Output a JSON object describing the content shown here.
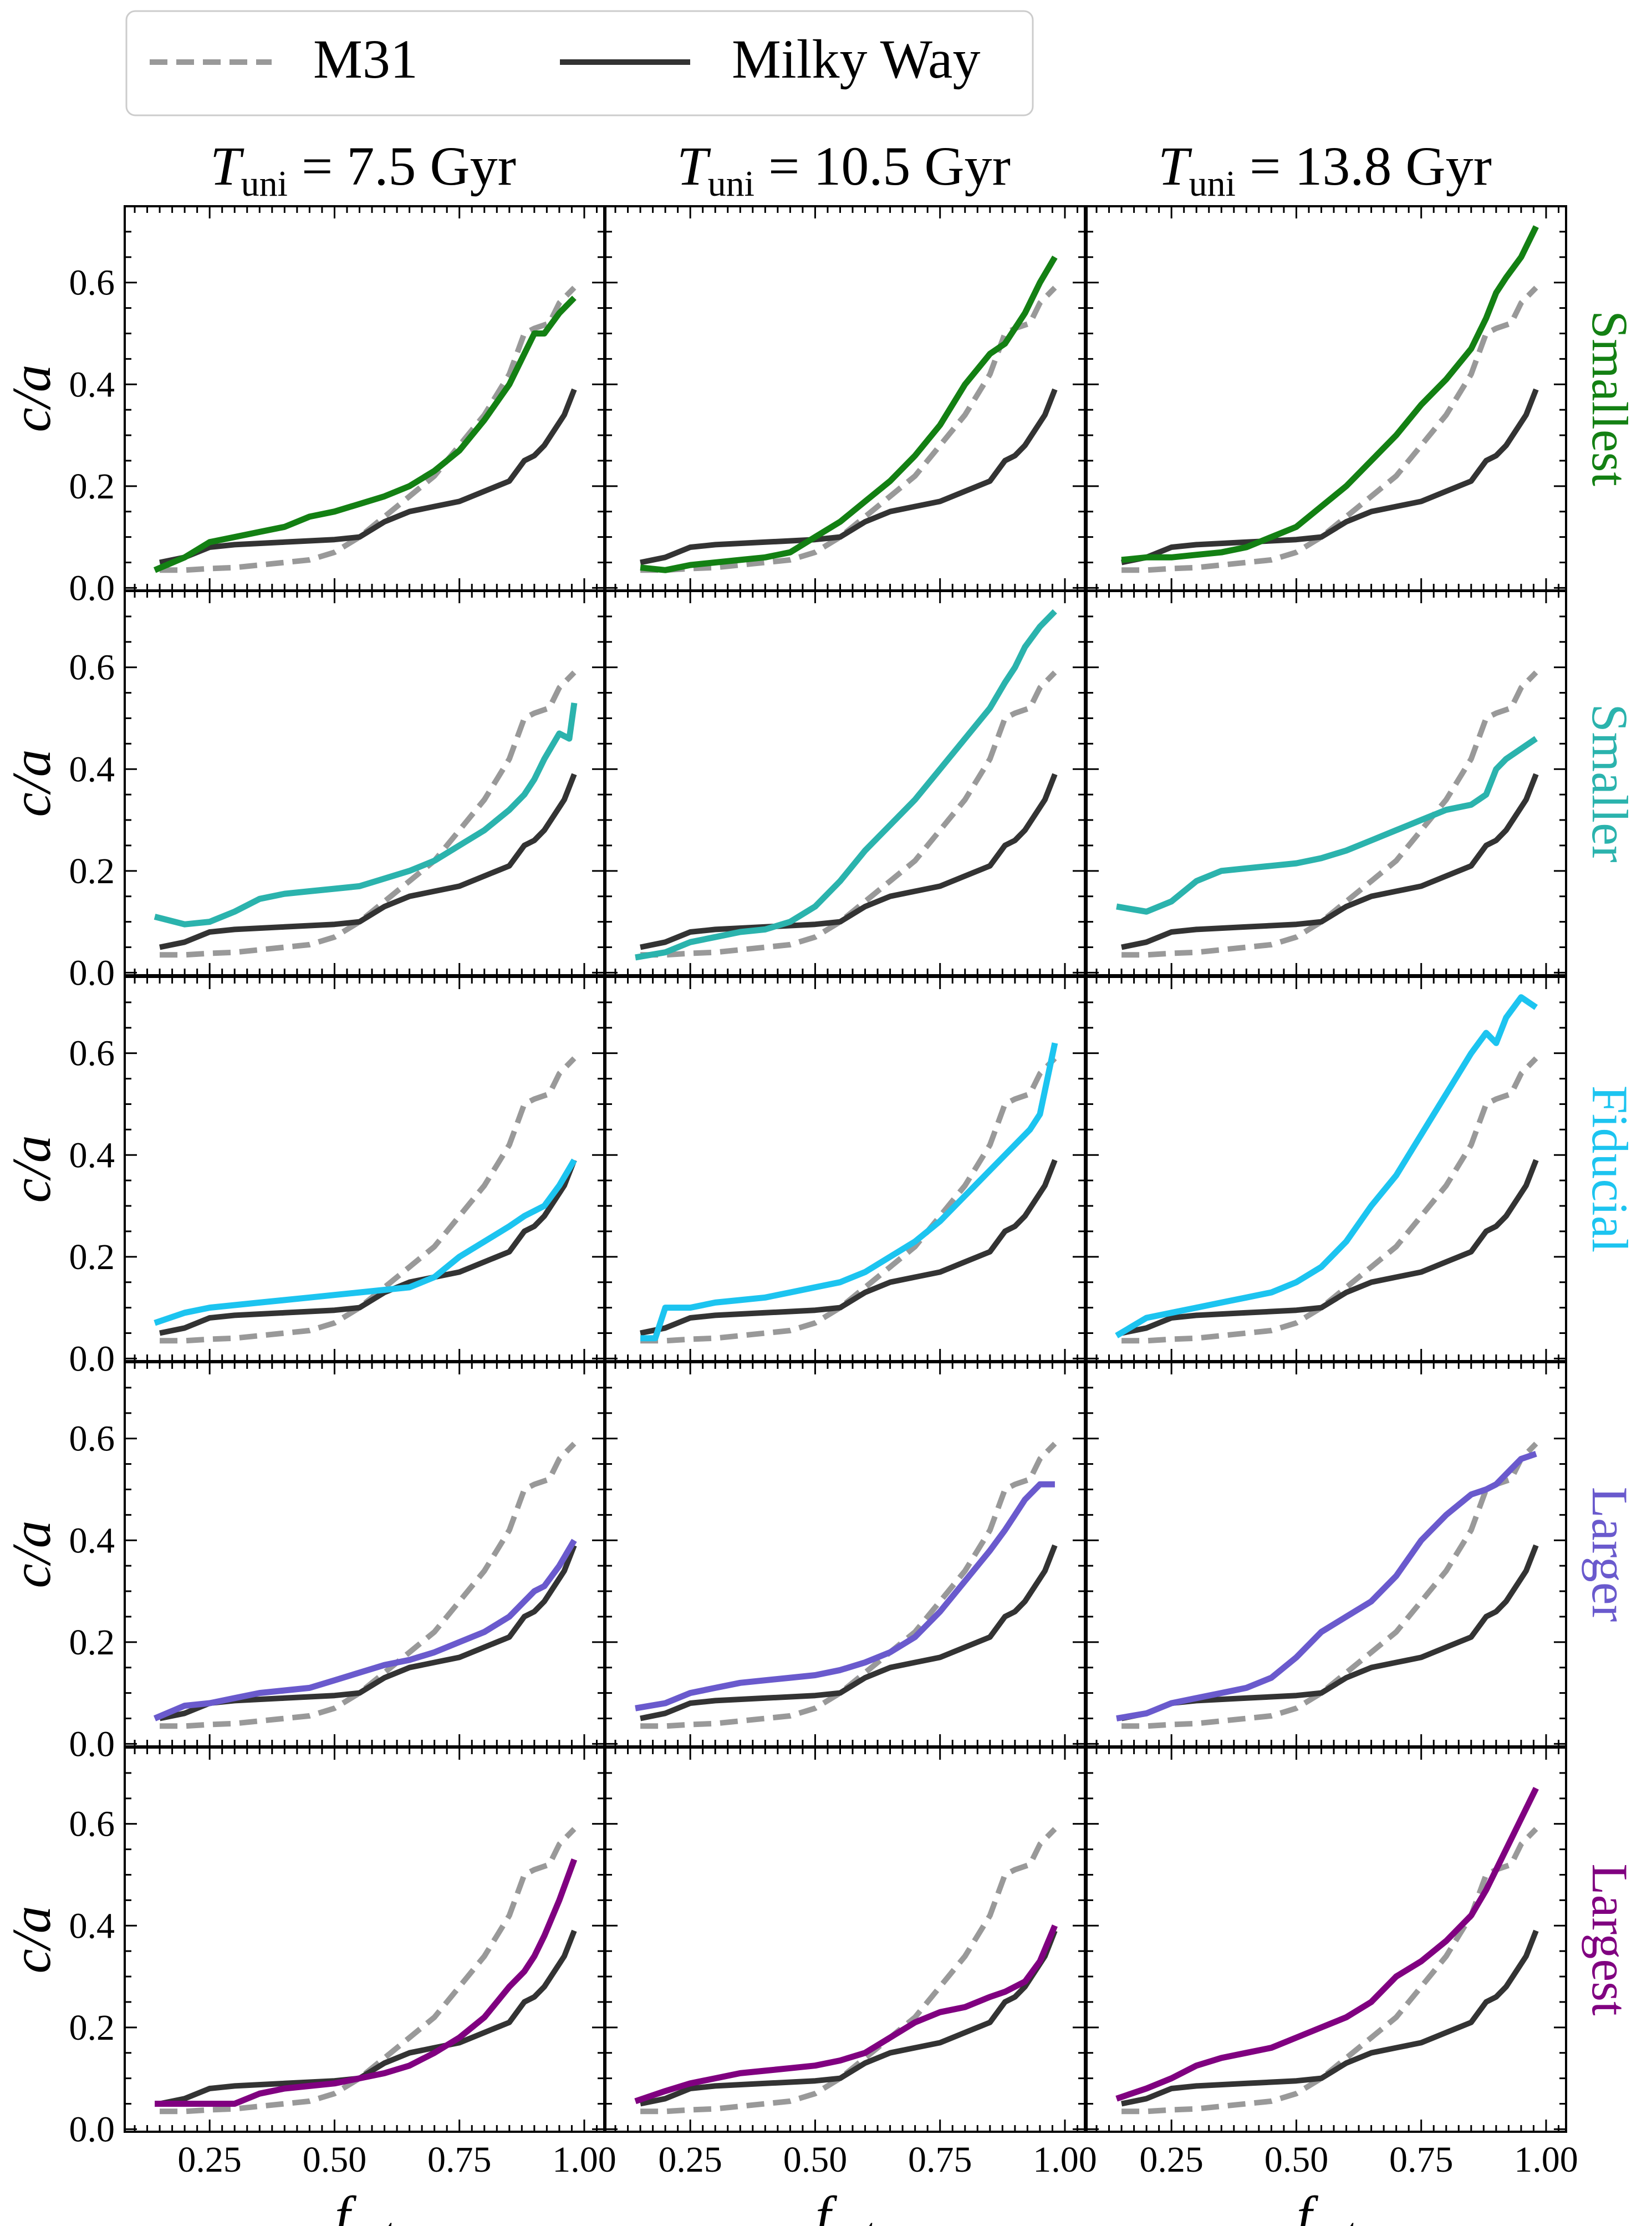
{
  "legend": {
    "entries": [
      {
        "name": "M31",
        "style": "dashed",
        "color": "#999999"
      },
      {
        "name": "Milky Way",
        "style": "solid",
        "color": "#333333"
      }
    ]
  },
  "colors": {
    "m31": "#999999",
    "mw": "#333333",
    "rows": [
      "#138013",
      "#2bb3ad",
      "#1cc4f0",
      "#6a5acd",
      "#800080"
    ]
  },
  "columns": [
    {
      "symbol": "T",
      "subscript": "uni",
      "rest": " = 7.5 Gyr"
    },
    {
      "symbol": "T",
      "subscript": "uni",
      "rest": " = 10.5 Gyr"
    },
    {
      "symbol": "T",
      "subscript": "uni",
      "rest": " = 13.8 Gyr"
    }
  ],
  "rows": [
    "Smallest",
    "Smaller",
    "Fiducial",
    "Larger",
    "Largest"
  ],
  "axes": {
    "xlabel": "f",
    "xlabel_sub": "sat",
    "ylabel": "c/a",
    "xticks": [
      "0.25",
      "0.50",
      "0.75",
      "1.00"
    ],
    "yticks": [
      "0.0",
      "0.2",
      "0.4",
      "0.6"
    ]
  },
  "chart_data": {
    "type": "line",
    "layout": "5 rows x 3 columns of panels, shared axes",
    "xlim": [
      0.08,
      1.04
    ],
    "ylim": [
      -0.005,
      0.75
    ],
    "grid": false,
    "legend_position": "top",
    "reference_series": {
      "M31": {
        "x": [
          0.15,
          0.2,
          0.25,
          0.3,
          0.35,
          0.4,
          0.45,
          0.5,
          0.55,
          0.6,
          0.65,
          0.7,
          0.75,
          0.8,
          0.85,
          0.88,
          0.9,
          0.93,
          0.95,
          0.98
        ],
        "y": [
          0.035,
          0.035,
          0.038,
          0.04,
          0.045,
          0.05,
          0.055,
          0.07,
          0.1,
          0.14,
          0.18,
          0.22,
          0.28,
          0.34,
          0.42,
          0.5,
          0.51,
          0.52,
          0.56,
          0.59
        ]
      },
      "Milky Way": {
        "x": [
          0.15,
          0.2,
          0.25,
          0.3,
          0.4,
          0.5,
          0.55,
          0.6,
          0.65,
          0.7,
          0.75,
          0.8,
          0.85,
          0.88,
          0.9,
          0.92,
          0.94,
          0.96,
          0.98
        ],
        "y": [
          0.05,
          0.06,
          0.08,
          0.085,
          0.09,
          0.095,
          0.1,
          0.13,
          0.15,
          0.16,
          0.17,
          0.19,
          0.21,
          0.25,
          0.26,
          0.28,
          0.31,
          0.34,
          0.39
        ]
      }
    },
    "panels": [
      [
        {
          "x": [
            0.14,
            0.2,
            0.25,
            0.3,
            0.35,
            0.4,
            0.45,
            0.5,
            0.55,
            0.6,
            0.65,
            0.7,
            0.75,
            0.8,
            0.85,
            0.88,
            0.9,
            0.92,
            0.95,
            0.98
          ],
          "y": [
            0.035,
            0.06,
            0.09,
            0.1,
            0.11,
            0.12,
            0.14,
            0.15,
            0.165,
            0.18,
            0.2,
            0.23,
            0.27,
            0.33,
            0.4,
            0.46,
            0.5,
            0.5,
            0.54,
            0.57
          ]
        },
        {
          "x": [
            0.15,
            0.2,
            0.25,
            0.3,
            0.35,
            0.4,
            0.45,
            0.5,
            0.55,
            0.6,
            0.65,
            0.7,
            0.75,
            0.8,
            0.85,
            0.88,
            0.9,
            0.92,
            0.95,
            0.98
          ],
          "y": [
            0.04,
            0.035,
            0.045,
            0.05,
            0.055,
            0.06,
            0.07,
            0.1,
            0.13,
            0.17,
            0.21,
            0.26,
            0.32,
            0.4,
            0.46,
            0.48,
            0.51,
            0.54,
            0.6,
            0.65
          ]
        },
        {
          "x": [
            0.15,
            0.2,
            0.25,
            0.3,
            0.35,
            0.4,
            0.45,
            0.5,
            0.55,
            0.6,
            0.65,
            0.7,
            0.75,
            0.8,
            0.85,
            0.88,
            0.9,
            0.92,
            0.95,
            0.98
          ],
          "y": [
            0.055,
            0.06,
            0.06,
            0.065,
            0.07,
            0.08,
            0.1,
            0.12,
            0.16,
            0.2,
            0.25,
            0.3,
            0.36,
            0.41,
            0.47,
            0.53,
            0.58,
            0.61,
            0.65,
            0.71
          ]
        }
      ],
      [
        {
          "x": [
            0.14,
            0.2,
            0.25,
            0.3,
            0.35,
            0.4,
            0.45,
            0.5,
            0.55,
            0.6,
            0.65,
            0.7,
            0.75,
            0.8,
            0.85,
            0.88,
            0.9,
            0.92,
            0.95,
            0.97,
            0.98
          ],
          "y": [
            0.11,
            0.095,
            0.1,
            0.12,
            0.145,
            0.155,
            0.16,
            0.165,
            0.17,
            0.185,
            0.2,
            0.22,
            0.25,
            0.28,
            0.32,
            0.35,
            0.38,
            0.42,
            0.47,
            0.46,
            0.53
          ]
        },
        {
          "x": [
            0.14,
            0.2,
            0.25,
            0.3,
            0.35,
            0.4,
            0.45,
            0.5,
            0.55,
            0.6,
            0.65,
            0.7,
            0.75,
            0.8,
            0.85,
            0.88,
            0.9,
            0.92,
            0.95,
            0.98
          ],
          "y": [
            0.03,
            0.04,
            0.06,
            0.07,
            0.08,
            0.085,
            0.1,
            0.13,
            0.18,
            0.24,
            0.29,
            0.34,
            0.4,
            0.46,
            0.52,
            0.57,
            0.6,
            0.64,
            0.68,
            0.71
          ]
        },
        {
          "x": [
            0.14,
            0.2,
            0.25,
            0.3,
            0.35,
            0.4,
            0.45,
            0.5,
            0.55,
            0.6,
            0.65,
            0.7,
            0.75,
            0.8,
            0.85,
            0.88,
            0.9,
            0.92,
            0.95,
            0.98
          ],
          "y": [
            0.13,
            0.12,
            0.14,
            0.18,
            0.2,
            0.205,
            0.21,
            0.215,
            0.225,
            0.24,
            0.26,
            0.28,
            0.3,
            0.32,
            0.33,
            0.35,
            0.4,
            0.42,
            0.44,
            0.46
          ]
        }
      ],
      [
        {
          "x": [
            0.14,
            0.2,
            0.25,
            0.3,
            0.35,
            0.4,
            0.45,
            0.5,
            0.55,
            0.6,
            0.65,
            0.7,
            0.75,
            0.8,
            0.85,
            0.88,
            0.9,
            0.92,
            0.95,
            0.98
          ],
          "y": [
            0.07,
            0.09,
            0.1,
            0.105,
            0.11,
            0.115,
            0.12,
            0.125,
            0.13,
            0.135,
            0.14,
            0.16,
            0.2,
            0.23,
            0.26,
            0.28,
            0.29,
            0.3,
            0.34,
            0.39
          ]
        },
        {
          "x": [
            0.15,
            0.18,
            0.2,
            0.25,
            0.3,
            0.35,
            0.4,
            0.45,
            0.5,
            0.55,
            0.6,
            0.65,
            0.7,
            0.75,
            0.8,
            0.85,
            0.88,
            0.9,
            0.93,
            0.95,
            0.98
          ],
          "y": [
            0.04,
            0.04,
            0.1,
            0.1,
            0.11,
            0.115,
            0.12,
            0.13,
            0.14,
            0.15,
            0.17,
            0.2,
            0.23,
            0.27,
            0.32,
            0.37,
            0.4,
            0.42,
            0.45,
            0.48,
            0.62
          ]
        },
        {
          "x": [
            0.14,
            0.2,
            0.25,
            0.3,
            0.35,
            0.4,
            0.45,
            0.5,
            0.55,
            0.6,
            0.65,
            0.7,
            0.75,
            0.8,
            0.85,
            0.88,
            0.9,
            0.92,
            0.95,
            0.98
          ],
          "y": [
            0.045,
            0.08,
            0.09,
            0.1,
            0.11,
            0.12,
            0.13,
            0.15,
            0.18,
            0.23,
            0.3,
            0.36,
            0.44,
            0.52,
            0.6,
            0.64,
            0.62,
            0.67,
            0.71,
            0.69
          ]
        }
      ],
      [
        {
          "x": [
            0.14,
            0.2,
            0.25,
            0.3,
            0.35,
            0.4,
            0.45,
            0.5,
            0.55,
            0.6,
            0.65,
            0.7,
            0.75,
            0.8,
            0.85,
            0.88,
            0.9,
            0.92,
            0.95,
            0.98
          ],
          "y": [
            0.05,
            0.075,
            0.08,
            0.09,
            0.1,
            0.105,
            0.11,
            0.125,
            0.14,
            0.155,
            0.165,
            0.18,
            0.2,
            0.22,
            0.25,
            0.28,
            0.3,
            0.31,
            0.35,
            0.4
          ]
        },
        {
          "x": [
            0.14,
            0.2,
            0.25,
            0.3,
            0.35,
            0.4,
            0.45,
            0.5,
            0.55,
            0.6,
            0.65,
            0.7,
            0.75,
            0.8,
            0.85,
            0.88,
            0.9,
            0.92,
            0.95,
            0.98
          ],
          "y": [
            0.07,
            0.08,
            0.1,
            0.11,
            0.12,
            0.125,
            0.13,
            0.135,
            0.145,
            0.16,
            0.18,
            0.21,
            0.26,
            0.32,
            0.38,
            0.42,
            0.45,
            0.48,
            0.51,
            0.51
          ]
        },
        {
          "x": [
            0.14,
            0.2,
            0.25,
            0.3,
            0.35,
            0.4,
            0.45,
            0.5,
            0.55,
            0.6,
            0.65,
            0.7,
            0.75,
            0.8,
            0.85,
            0.88,
            0.9,
            0.92,
            0.95,
            0.98
          ],
          "y": [
            0.05,
            0.06,
            0.08,
            0.09,
            0.1,
            0.11,
            0.13,
            0.17,
            0.22,
            0.25,
            0.28,
            0.33,
            0.4,
            0.45,
            0.49,
            0.5,
            0.51,
            0.53,
            0.56,
            0.57
          ]
        }
      ],
      [
        {
          "x": [
            0.14,
            0.2,
            0.25,
            0.3,
            0.35,
            0.4,
            0.45,
            0.5,
            0.55,
            0.6,
            0.65,
            0.7,
            0.75,
            0.8,
            0.85,
            0.88,
            0.9,
            0.92,
            0.95,
            0.98
          ],
          "y": [
            0.05,
            0.05,
            0.05,
            0.05,
            0.07,
            0.08,
            0.085,
            0.09,
            0.1,
            0.11,
            0.125,
            0.15,
            0.18,
            0.22,
            0.28,
            0.31,
            0.34,
            0.38,
            0.45,
            0.53
          ]
        },
        {
          "x": [
            0.14,
            0.2,
            0.25,
            0.3,
            0.35,
            0.4,
            0.45,
            0.5,
            0.55,
            0.6,
            0.65,
            0.7,
            0.75,
            0.8,
            0.85,
            0.88,
            0.9,
            0.92,
            0.95,
            0.98
          ],
          "y": [
            0.055,
            0.075,
            0.09,
            0.1,
            0.11,
            0.115,
            0.12,
            0.125,
            0.135,
            0.15,
            0.18,
            0.21,
            0.23,
            0.24,
            0.26,
            0.27,
            0.28,
            0.29,
            0.33,
            0.4
          ]
        },
        {
          "x": [
            0.14,
            0.2,
            0.25,
            0.3,
            0.35,
            0.4,
            0.45,
            0.5,
            0.55,
            0.6,
            0.65,
            0.7,
            0.75,
            0.8,
            0.85,
            0.88,
            0.9,
            0.92,
            0.95,
            0.98
          ],
          "y": [
            0.06,
            0.08,
            0.1,
            0.125,
            0.14,
            0.15,
            0.16,
            0.18,
            0.2,
            0.22,
            0.25,
            0.3,
            0.33,
            0.37,
            0.42,
            0.47,
            0.51,
            0.55,
            0.61,
            0.67
          ]
        }
      ]
    ]
  }
}
